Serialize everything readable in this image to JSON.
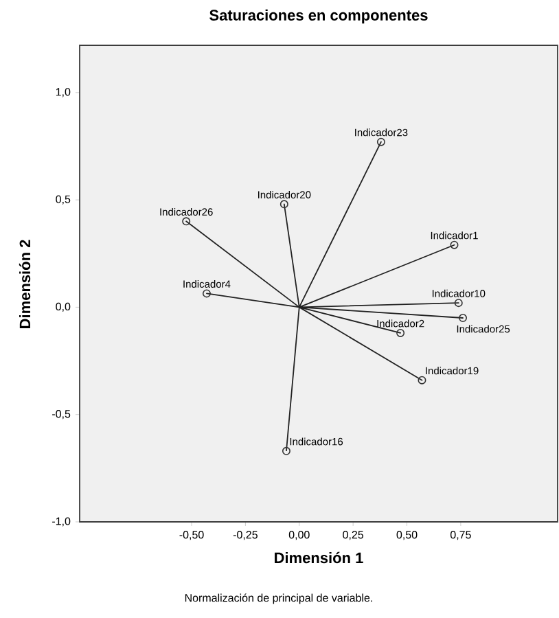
{
  "chart_data": {
    "type": "scatter",
    "title": "Saturaciones en componentes",
    "xlabel": "Dimensión 1",
    "ylabel": "Dimensión 2",
    "xlim": [
      -1.02,
      1.2
    ],
    "ylim": [
      -1.0,
      1.22
    ],
    "xticks": [
      {
        "value": -0.5,
        "label": "-0,50"
      },
      {
        "value": -0.25,
        "label": "-0,25"
      },
      {
        "value": 0,
        "label": "0,00"
      },
      {
        "value": 0.25,
        "label": "0,25"
      },
      {
        "value": 0.5,
        "label": "0,50"
      },
      {
        "value": 0.75,
        "label": "0,75"
      }
    ],
    "yticks": [
      {
        "value": -1.0,
        "label": "-1,0"
      },
      {
        "value": -0.5,
        "label": "-0,5"
      },
      {
        "value": 0,
        "label": "0,0"
      },
      {
        "value": 0.5,
        "label": "0,5"
      },
      {
        "value": 1.0,
        "label": "1,0"
      }
    ],
    "grid": false,
    "series": [
      {
        "type": "line",
        "color": "#222222",
        "marker": "none",
        "x": [
          0,
          0.38,
          0,
          -0.07,
          0,
          -0.525,
          0,
          0.72,
          0,
          -0.43,
          0,
          0.74,
          0,
          0.76,
          0,
          0.47,
          0,
          0.57,
          0,
          -0.06
        ],
        "values": [
          0,
          0.77,
          0,
          0.48,
          0,
          0.4,
          0,
          0.29,
          0,
          0.064,
          0,
          0.02,
          0,
          -0.05,
          0,
          -0.12,
          0,
          -0.34,
          0,
          -0.67
        ]
      },
      {
        "color": "#333333",
        "marker": "circle",
        "x": [
          0.38,
          -0.07,
          -0.525,
          0.72,
          -0.43,
          0.74,
          0.76,
          0.47,
          0.57,
          -0.06
        ],
        "values": [
          0.77,
          0.48,
          0.4,
          0.29,
          0.064,
          0.02,
          -0.05,
          -0.12,
          -0.34,
          -0.67
        ]
      }
    ],
    "annotations": [
      {
        "text": "Indicador23",
        "x": 0.38,
        "y": 0.77
      },
      {
        "text": "Indicador20",
        "x": -0.07,
        "y": 0.48
      },
      {
        "text": "Indicador26",
        "x": -0.525,
        "y": 0.4
      },
      {
        "text": "Indicador1",
        "x": 0.72,
        "y": 0.29
      },
      {
        "text": "Indicador4",
        "x": -0.43,
        "y": 0.064
      },
      {
        "text": "Indicador10",
        "x": 0.74,
        "y": 0.02
      },
      {
        "text": "Indicador25",
        "x": 0.76,
        "y": -0.05
      },
      {
        "text": "Indicador2",
        "x": 0.47,
        "y": -0.12
      },
      {
        "text": "Indicador19",
        "x": 0.57,
        "y": -0.34
      },
      {
        "text": "Indicador16",
        "x": -0.06,
        "y": -0.67
      },
      "Normalización de principal de variable."
    ]
  }
}
